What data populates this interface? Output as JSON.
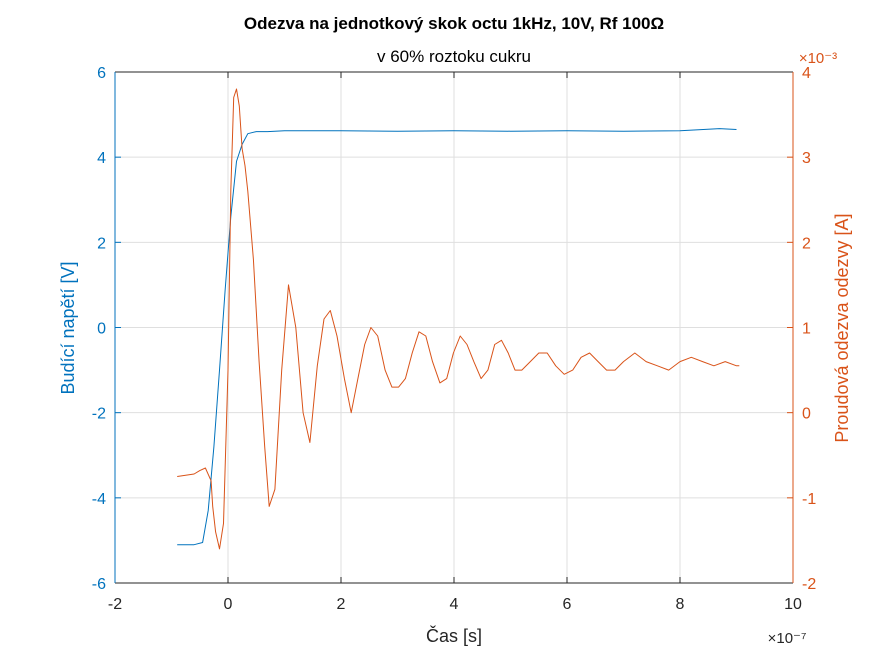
{
  "chart_data": {
    "type": "line",
    "title": "Odezva na jednotkový skok octu 1kHz, 10V, Rf 100Ω",
    "subtitle": "v 60% roztoku cukru",
    "xlabel": "Čas [s]",
    "ylabel_left": "Budící napětí [V]",
    "ylabel_right": "Proudová odezva odezvy [A]",
    "x_exponent": "×10⁻⁷",
    "y_right_exponent": "×10⁻³",
    "xlim": [
      -2e-07,
      1e-06
    ],
    "ylim_left": [
      -6,
      6
    ],
    "ylim_right": [
      -0.002,
      0.004
    ],
    "x_ticks": [
      -2,
      0,
      2,
      4,
      6,
      8,
      10
    ],
    "y_left_ticks": [
      -6,
      -4,
      -2,
      0,
      2,
      4,
      6
    ],
    "y_right_ticks": [
      -2,
      -1,
      0,
      1,
      2,
      3,
      4
    ],
    "grid": true,
    "colors": {
      "voltage": "#0072BD",
      "current": "#D95319"
    },
    "series": [
      {
        "axis": "left",
        "x": [
          -9e-08,
          -6e-08,
          -4.5e-08,
          -3.5e-08,
          -2.5e-08,
          -1.5e-08,
          -5e-09,
          5e-09,
          1.5e-08,
          2.5e-08,
          3.5e-08,
          5e-08,
          7e-08,
          1e-07,
          2e-07,
          3e-07,
          4e-07,
          5e-07,
          6e-07,
          7e-07,
          8e-07,
          8.7e-07,
          9e-07
        ],
        "values": [
          -5.1,
          -5.1,
          -5.05,
          -4.3,
          -2.8,
          -1.0,
          0.9,
          2.6,
          3.9,
          4.3,
          4.55,
          4.6,
          4.6,
          4.62,
          4.62,
          4.61,
          4.62,
          4.61,
          4.62,
          4.61,
          4.62,
          4.67,
          4.65
        ]
      },
      {
        "axis": "right",
        "x": [
          -9e-08,
          -6e-08,
          -5e-08,
          -4e-08,
          -3e-08,
          -2.7e-08,
          -2.2e-08,
          -1.5e-08,
          -8e-09,
          0,
          5e-09,
          1e-08,
          1.5e-08,
          2e-08,
          2.5e-08,
          3e-08,
          3.5e-08,
          4.5e-08,
          5.5e-08,
          6.5e-08,
          7.3e-08,
          8.3e-08,
          9.5e-08,
          1.07e-07,
          1.2e-07,
          1.33e-07,
          1.45e-07,
          1.58e-07,
          1.7e-07,
          1.81e-07,
          1.93e-07,
          2.06e-07,
          2.18e-07,
          2.3e-07,
          2.42e-07,
          2.53e-07,
          2.65e-07,
          2.78e-07,
          2.9e-07,
          3.02e-07,
          3.14e-07,
          3.26e-07,
          3.38e-07,
          3.5e-07,
          3.62e-07,
          3.75e-07,
          3.87e-07,
          3.99e-07,
          4.11e-07,
          4.23e-07,
          4.35e-07,
          4.48e-07,
          4.6e-07,
          4.72e-07,
          4.84e-07,
          4.96e-07,
          5.08e-07,
          5.2e-07,
          5.35e-07,
          5.5e-07,
          5.65e-07,
          5.8e-07,
          5.95e-07,
          6.1e-07,
          6.25e-07,
          6.4e-07,
          6.55e-07,
          6.7e-07,
          6.85e-07,
          7e-07,
          7.2e-07,
          7.4e-07,
          7.6e-07,
          7.8e-07,
          8e-07,
          8.2e-07,
          8.4e-07,
          8.6e-07,
          8.8e-07,
          9e-07,
          9.05e-07
        ],
        "values": [
          -0.00075,
          -0.00072,
          -0.00068,
          -0.00065,
          -0.0008,
          -0.0011,
          -0.0014,
          -0.0016,
          -0.0013,
          0.0005,
          0.0026,
          0.0037,
          0.0038,
          0.0036,
          0.0031,
          0.0029,
          0.0026,
          0.0018,
          0.0006,
          -0.0004,
          -0.0011,
          -0.0009,
          0.0005,
          0.0015,
          0.001,
          0.0,
          -0.00035,
          0.00055,
          0.0011,
          0.0012,
          0.0009,
          0.0004,
          0.0,
          0.0004,
          0.0008,
          0.001,
          0.0009,
          0.0005,
          0.0003,
          0.0003,
          0.0004,
          0.0007,
          0.00095,
          0.0009,
          0.0006,
          0.00035,
          0.0004,
          0.0007,
          0.0009,
          0.0008,
          0.0006,
          0.0004,
          0.0005,
          0.0008,
          0.00085,
          0.0007,
          0.0005,
          0.0005,
          0.0006,
          0.0007,
          0.0007,
          0.00055,
          0.00045,
          0.0005,
          0.00065,
          0.0007,
          0.0006,
          0.0005,
          0.0005,
          0.0006,
          0.0007,
          0.0006,
          0.00055,
          0.0005,
          0.0006,
          0.00065,
          0.0006,
          0.00055,
          0.0006,
          0.00055,
          0.00055
        ]
      }
    ]
  }
}
